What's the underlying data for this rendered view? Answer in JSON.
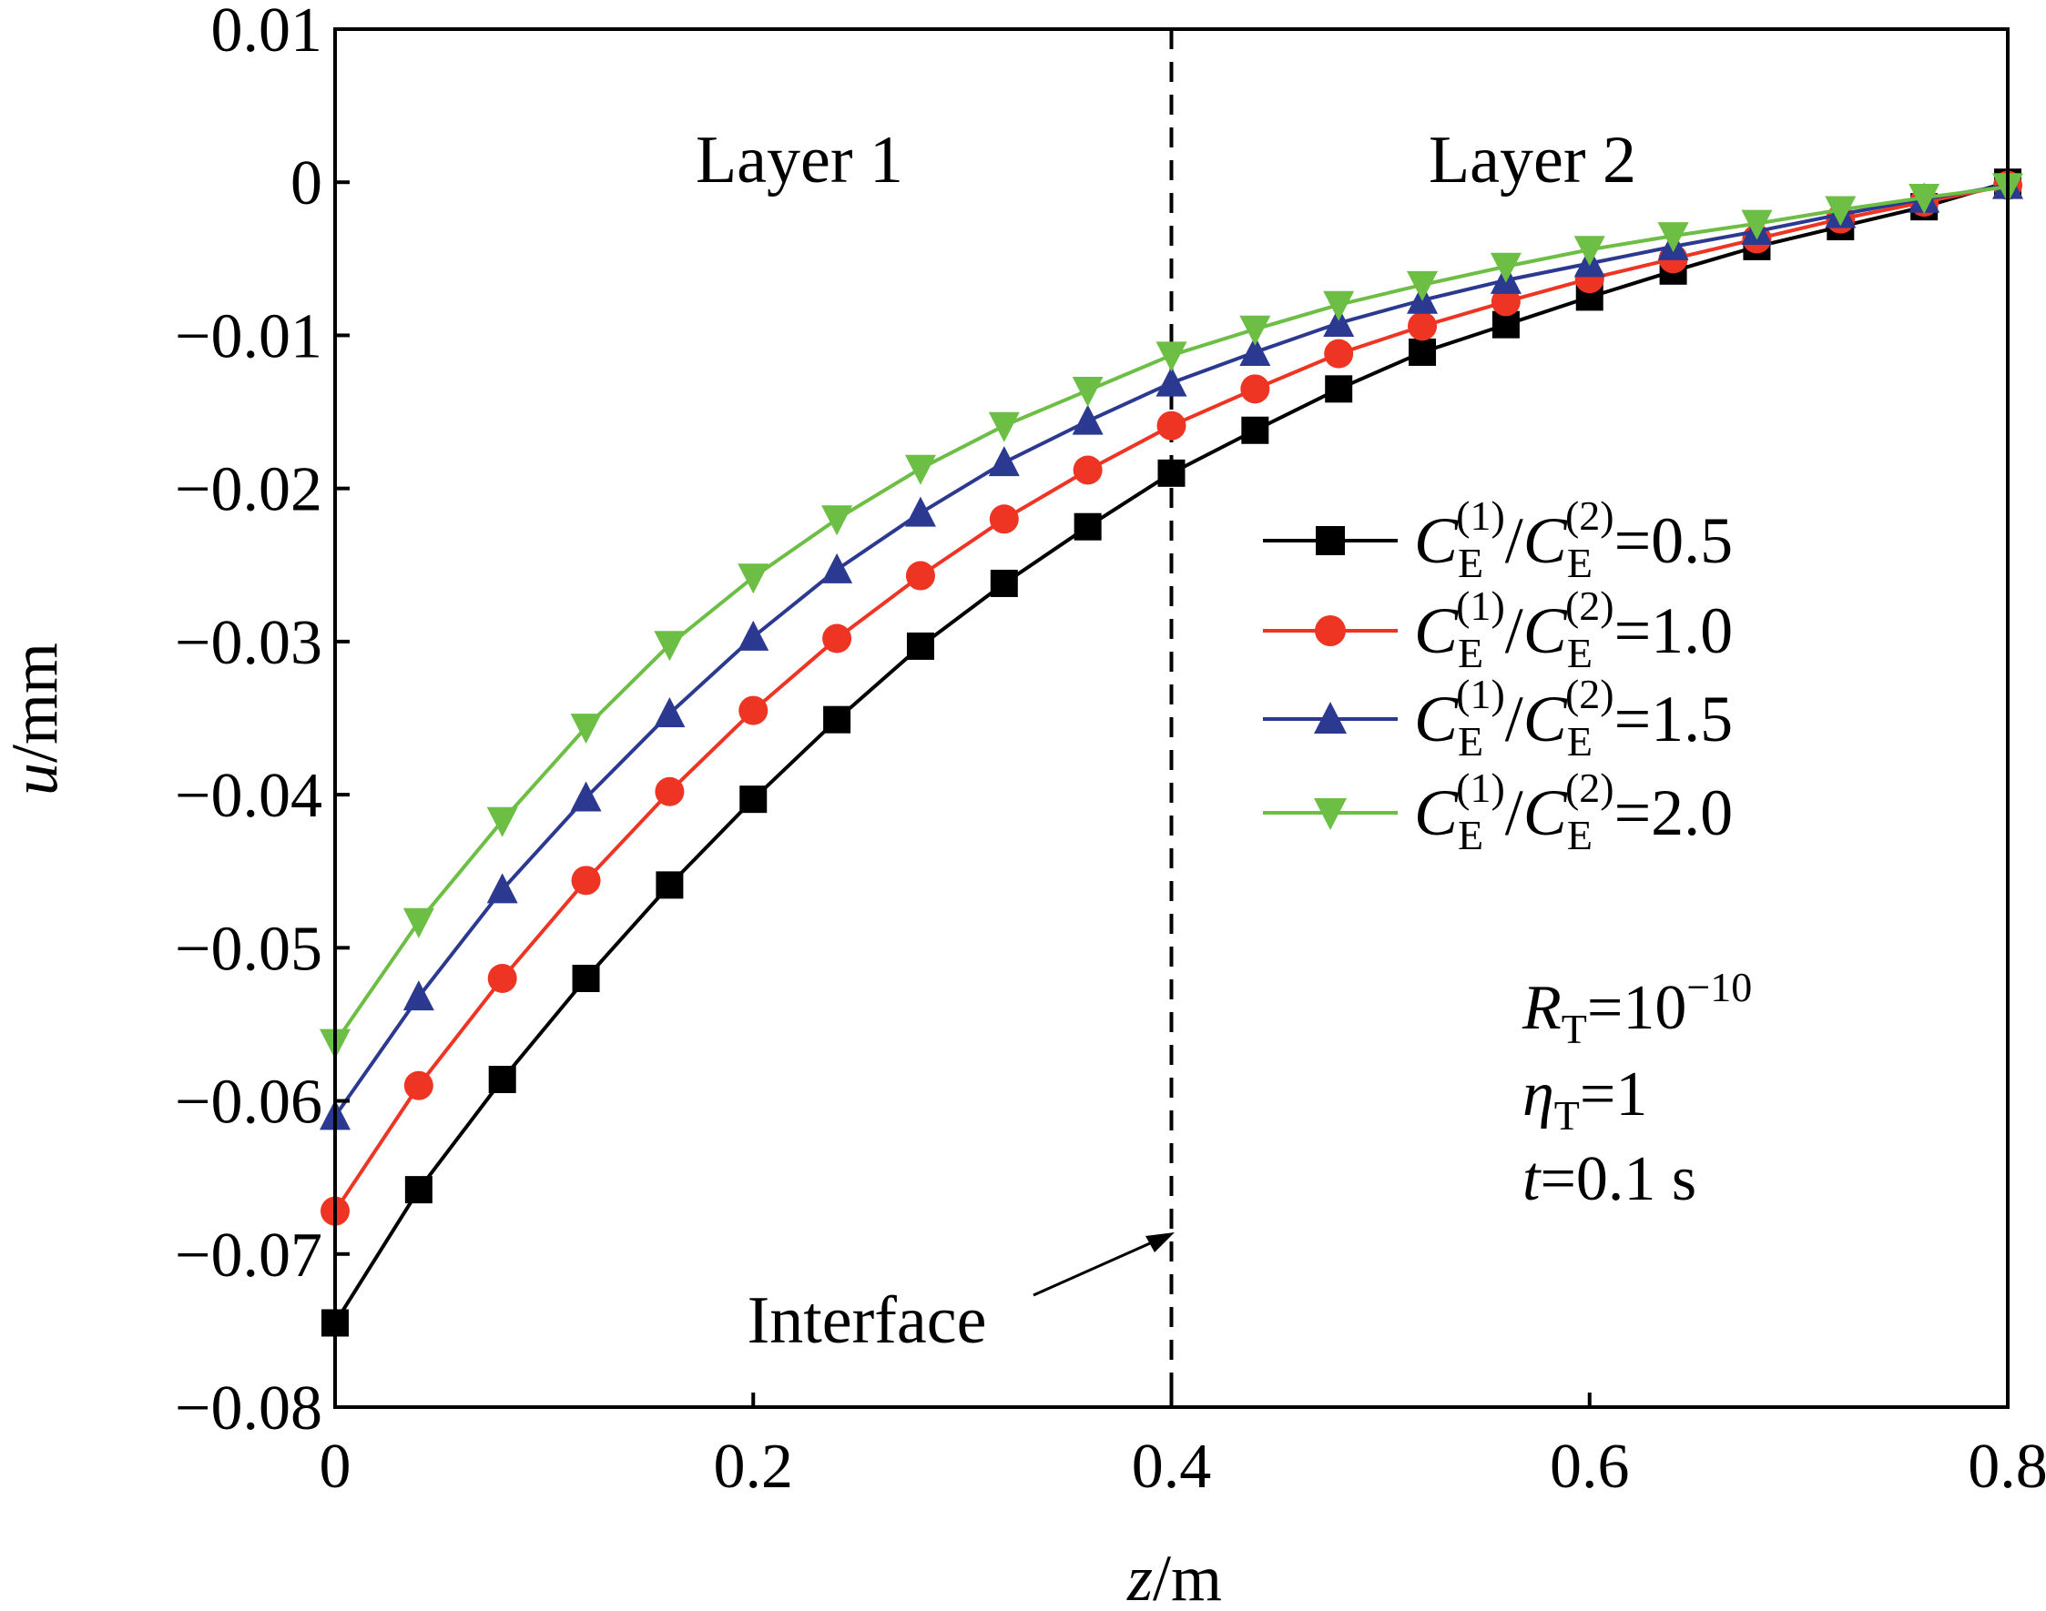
{
  "chart_data": {
    "type": "line",
    "xlabel_var": "z",
    "xlabel_unit": "/m",
    "ylabel_var": "u",
    "ylabel_unit": "/mm",
    "xlim": [
      0,
      0.8
    ],
    "ylim": [
      -0.08,
      0.01
    ],
    "xticks": [
      "0",
      "0.2",
      "0.4",
      "0.6",
      "0.8"
    ],
    "xtick_values": [
      0,
      0.2,
      0.4,
      0.6,
      0.8
    ],
    "yticks": [
      "0.01",
      "0",
      "−0.01",
      "−0.02",
      "−0.03",
      "−0.04",
      "−0.05",
      "−0.06",
      "−0.07",
      "−0.08"
    ],
    "ytick_values": [
      0.01,
      0,
      -0.01,
      -0.02,
      -0.03,
      -0.04,
      -0.05,
      -0.06,
      -0.07,
      -0.08
    ],
    "interface_x": 0.4,
    "grid": false,
    "legend_placement": "right-middle",
    "region_labels": [
      "Layer 1",
      "Layer 2"
    ],
    "annotation": "Interface",
    "notes": {
      "r": {
        "var": "R",
        "sub": "T",
        "rest": "=10",
        "sup": "−10"
      },
      "eta": {
        "var": "η",
        "sub": "T",
        "rest": "=1"
      },
      "t": {
        "var": "t",
        "rest": "=0.1 s"
      }
    },
    "legend_parts": {
      "var": "C",
      "sub": "E",
      "sup1": "(1)",
      "slash": "/",
      "sup2": "(2)"
    },
    "x": [
      0,
      0.04,
      0.08,
      0.12,
      0.16,
      0.2,
      0.24,
      0.28,
      0.32,
      0.36,
      0.4,
      0.44,
      0.48,
      0.52,
      0.56,
      0.6,
      0.64,
      0.68,
      0.72,
      0.76,
      0.8
    ],
    "series": [
      {
        "name": "=0.5",
        "color": "#000000",
        "marker": "square",
        "values": [
          -0.0745,
          -0.0658,
          -0.0586,
          -0.052,
          -0.0459,
          -0.0403,
          -0.0351,
          -0.0303,
          -0.0262,
          -0.0225,
          -0.019,
          -0.0162,
          -0.0135,
          -0.0111,
          -0.0093,
          -0.0075,
          -0.0058,
          -0.0042,
          -0.0029,
          -0.0016,
          0.0
        ]
      },
      {
        "name": "=1.0",
        "color": "#ee3524",
        "marker": "circle",
        "values": [
          -0.0672,
          -0.059,
          -0.052,
          -0.0456,
          -0.0398,
          -0.0345,
          -0.0298,
          -0.0257,
          -0.022,
          -0.0188,
          -0.0159,
          -0.0135,
          -0.0112,
          -0.0094,
          -0.0078,
          -0.0063,
          -0.005,
          -0.0037,
          -0.0024,
          -0.0013,
          -0.0002
        ]
      },
      {
        "name": "=1.5",
        "color": "#2b3990",
        "marker": "triangle-up",
        "values": [
          -0.061,
          -0.0532,
          -0.0462,
          -0.0402,
          -0.0347,
          -0.0297,
          -0.0253,
          -0.0216,
          -0.0183,
          -0.0156,
          -0.0131,
          -0.0111,
          -0.0092,
          -0.0077,
          -0.0064,
          -0.0053,
          -0.0042,
          -0.0032,
          -0.0021,
          -0.0011,
          -0.0002
        ]
      },
      {
        "name": "=2.0",
        "color": "#6cbe45",
        "marker": "triangle-down",
        "values": [
          -0.0562,
          -0.0483,
          -0.0417,
          -0.0356,
          -0.0302,
          -0.0258,
          -0.022,
          -0.0187,
          -0.0159,
          -0.0136,
          -0.0113,
          -0.0096,
          -0.008,
          -0.0067,
          -0.0055,
          -0.0044,
          -0.0035,
          -0.0027,
          -0.0018,
          -0.001,
          -0.0003
        ]
      }
    ]
  }
}
